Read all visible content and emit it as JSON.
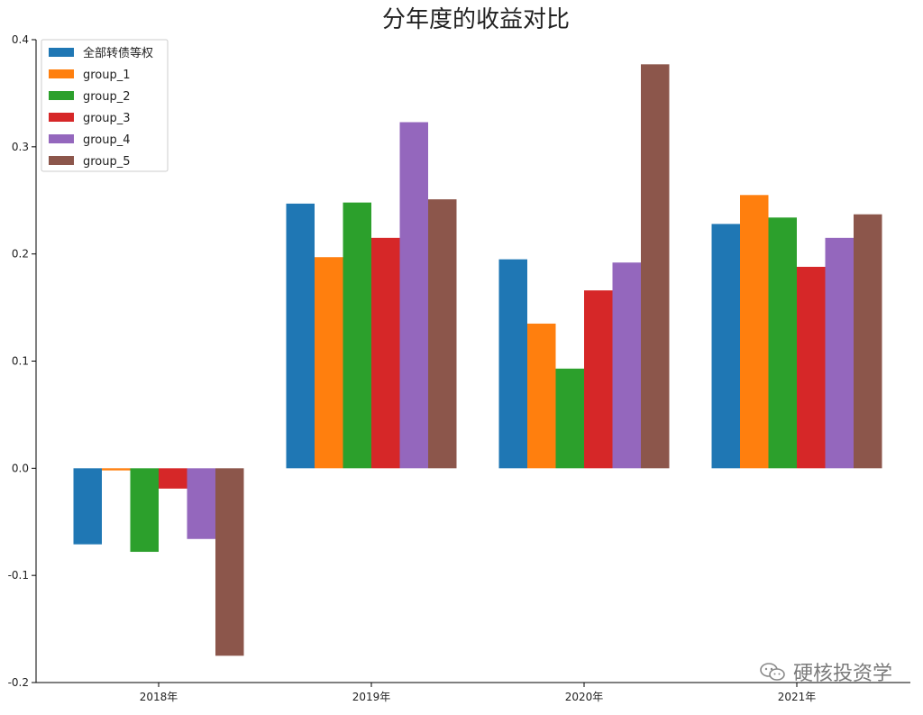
{
  "chart_data": {
    "type": "bar",
    "title": "分年度的收益对比",
    "xlabel": "",
    "ylabel": "",
    "categories": [
      "2018年",
      "2019年",
      "2020年",
      "2021年"
    ],
    "ylim": [
      -0.2,
      0.4
    ],
    "yticks": [
      -0.2,
      -0.1,
      0.0,
      0.1,
      0.2,
      0.3,
      0.4
    ],
    "ytick_labels": [
      "-0.2",
      "-0.1",
      "0.0",
      "0.1",
      "0.2",
      "0.3",
      "0.4"
    ],
    "grid": false,
    "legend_position": "top-left",
    "series": [
      {
        "name": "全部转债等权",
        "color": "#1f77b4",
        "values": [
          -0.071,
          0.247,
          0.195,
          0.228
        ]
      },
      {
        "name": "group_1",
        "color": "#ff7f0e",
        "values": [
          -0.002,
          0.197,
          0.135,
          0.255
        ]
      },
      {
        "name": "group_2",
        "color": "#2ca02c",
        "values": [
          -0.078,
          0.248,
          0.093,
          0.234
        ]
      },
      {
        "name": "group_3",
        "color": "#d62728",
        "values": [
          -0.019,
          0.215,
          0.166,
          0.188
        ]
      },
      {
        "name": "group_4",
        "color": "#9467bd",
        "values": [
          -0.066,
          0.323,
          0.192,
          0.215
        ]
      },
      {
        "name": "group_5",
        "color": "#8c564b",
        "values": [
          -0.175,
          0.251,
          0.377,
          0.237
        ]
      }
    ]
  },
  "watermark": {
    "text": "硬核投资学",
    "icon": "wechat-icon"
  }
}
